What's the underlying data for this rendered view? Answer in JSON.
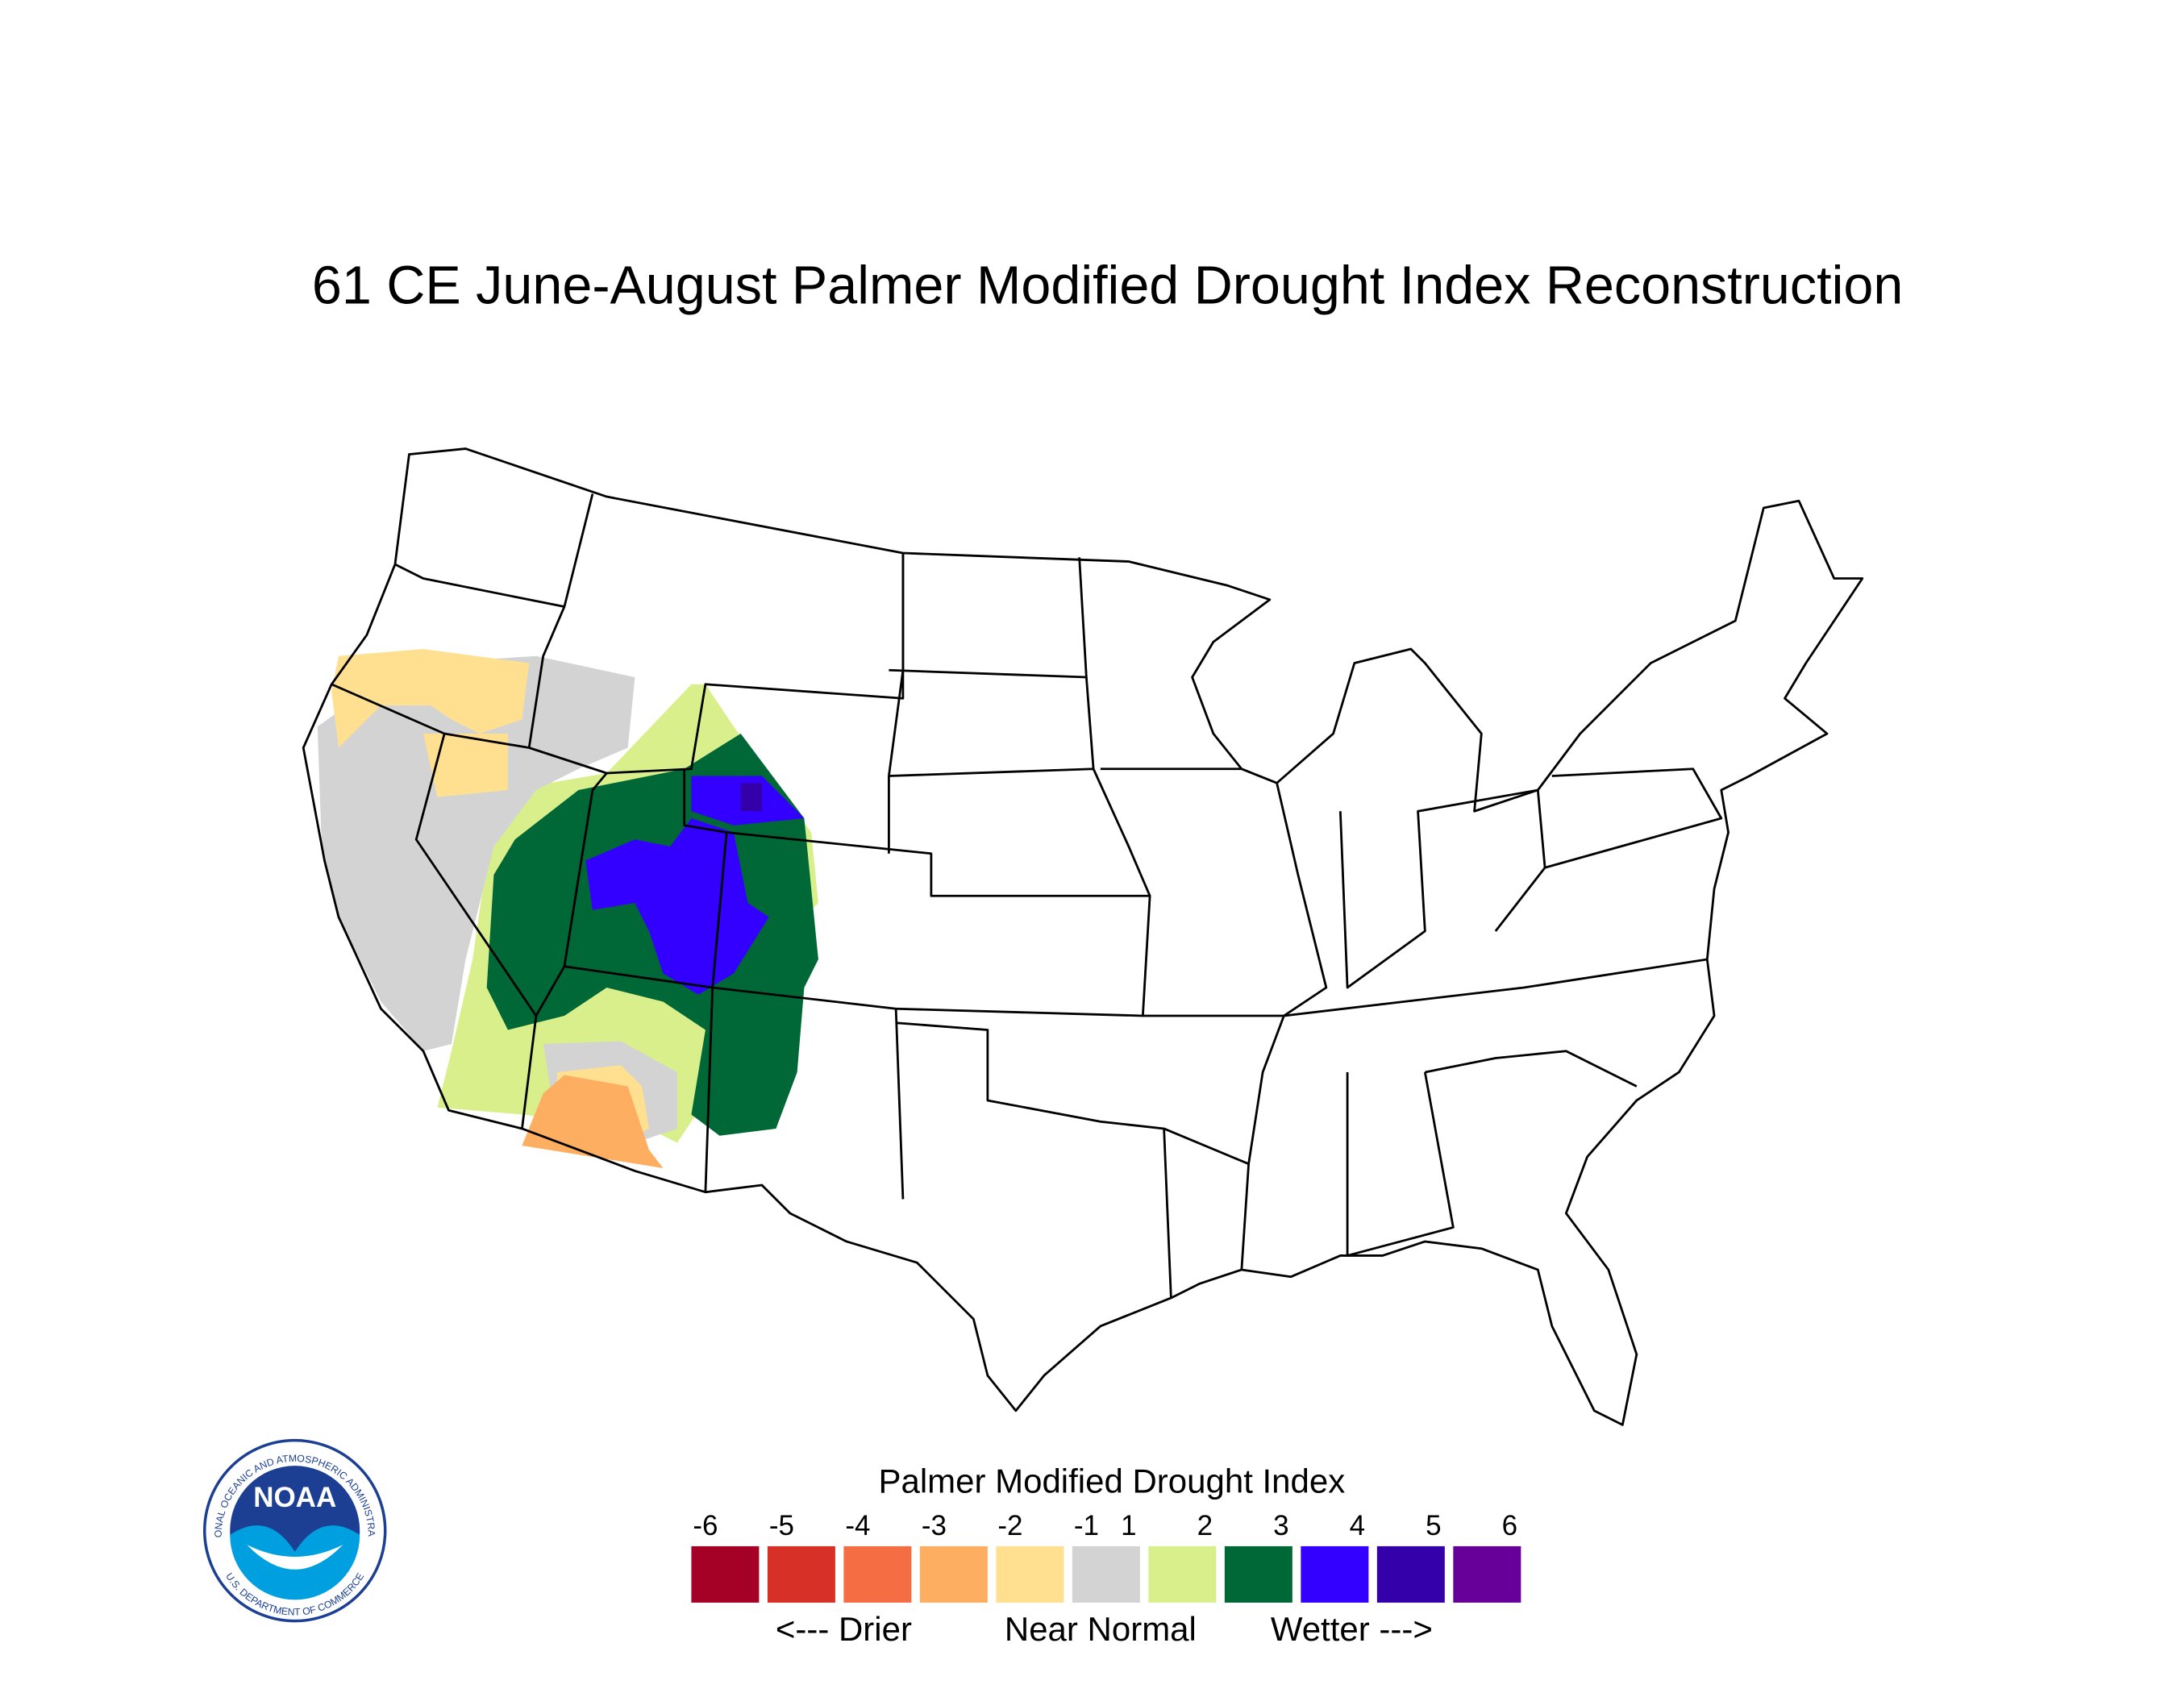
{
  "title": "61 CE  June-August  Palmer Modified Drought Index Reconstruction",
  "legend": {
    "title": "Palmer Modified Drought Index",
    "ticks": [
      -6,
      -5,
      -4,
      -3,
      -2,
      -1,
      1,
      2,
      3,
      4,
      5,
      6
    ],
    "colors": [
      "#a50026",
      "#d73027",
      "#f46d43",
      "#fdae61",
      "#fee090",
      "#d3d3d3",
      "#d9ef8b",
      "#006837",
      "#3300ff",
      "#3300aa",
      "#660099"
    ],
    "descriptors": [
      "<--- Drier",
      "Near Normal",
      "Wetter --->"
    ]
  },
  "logo": {
    "name": "NOAA",
    "ring_top": "NATIONAL OCEANIC AND ATMOSPHERIC ADMINISTRATION",
    "ring_bottom": "U.S. DEPARTMENT OF COMMERCE"
  }
}
